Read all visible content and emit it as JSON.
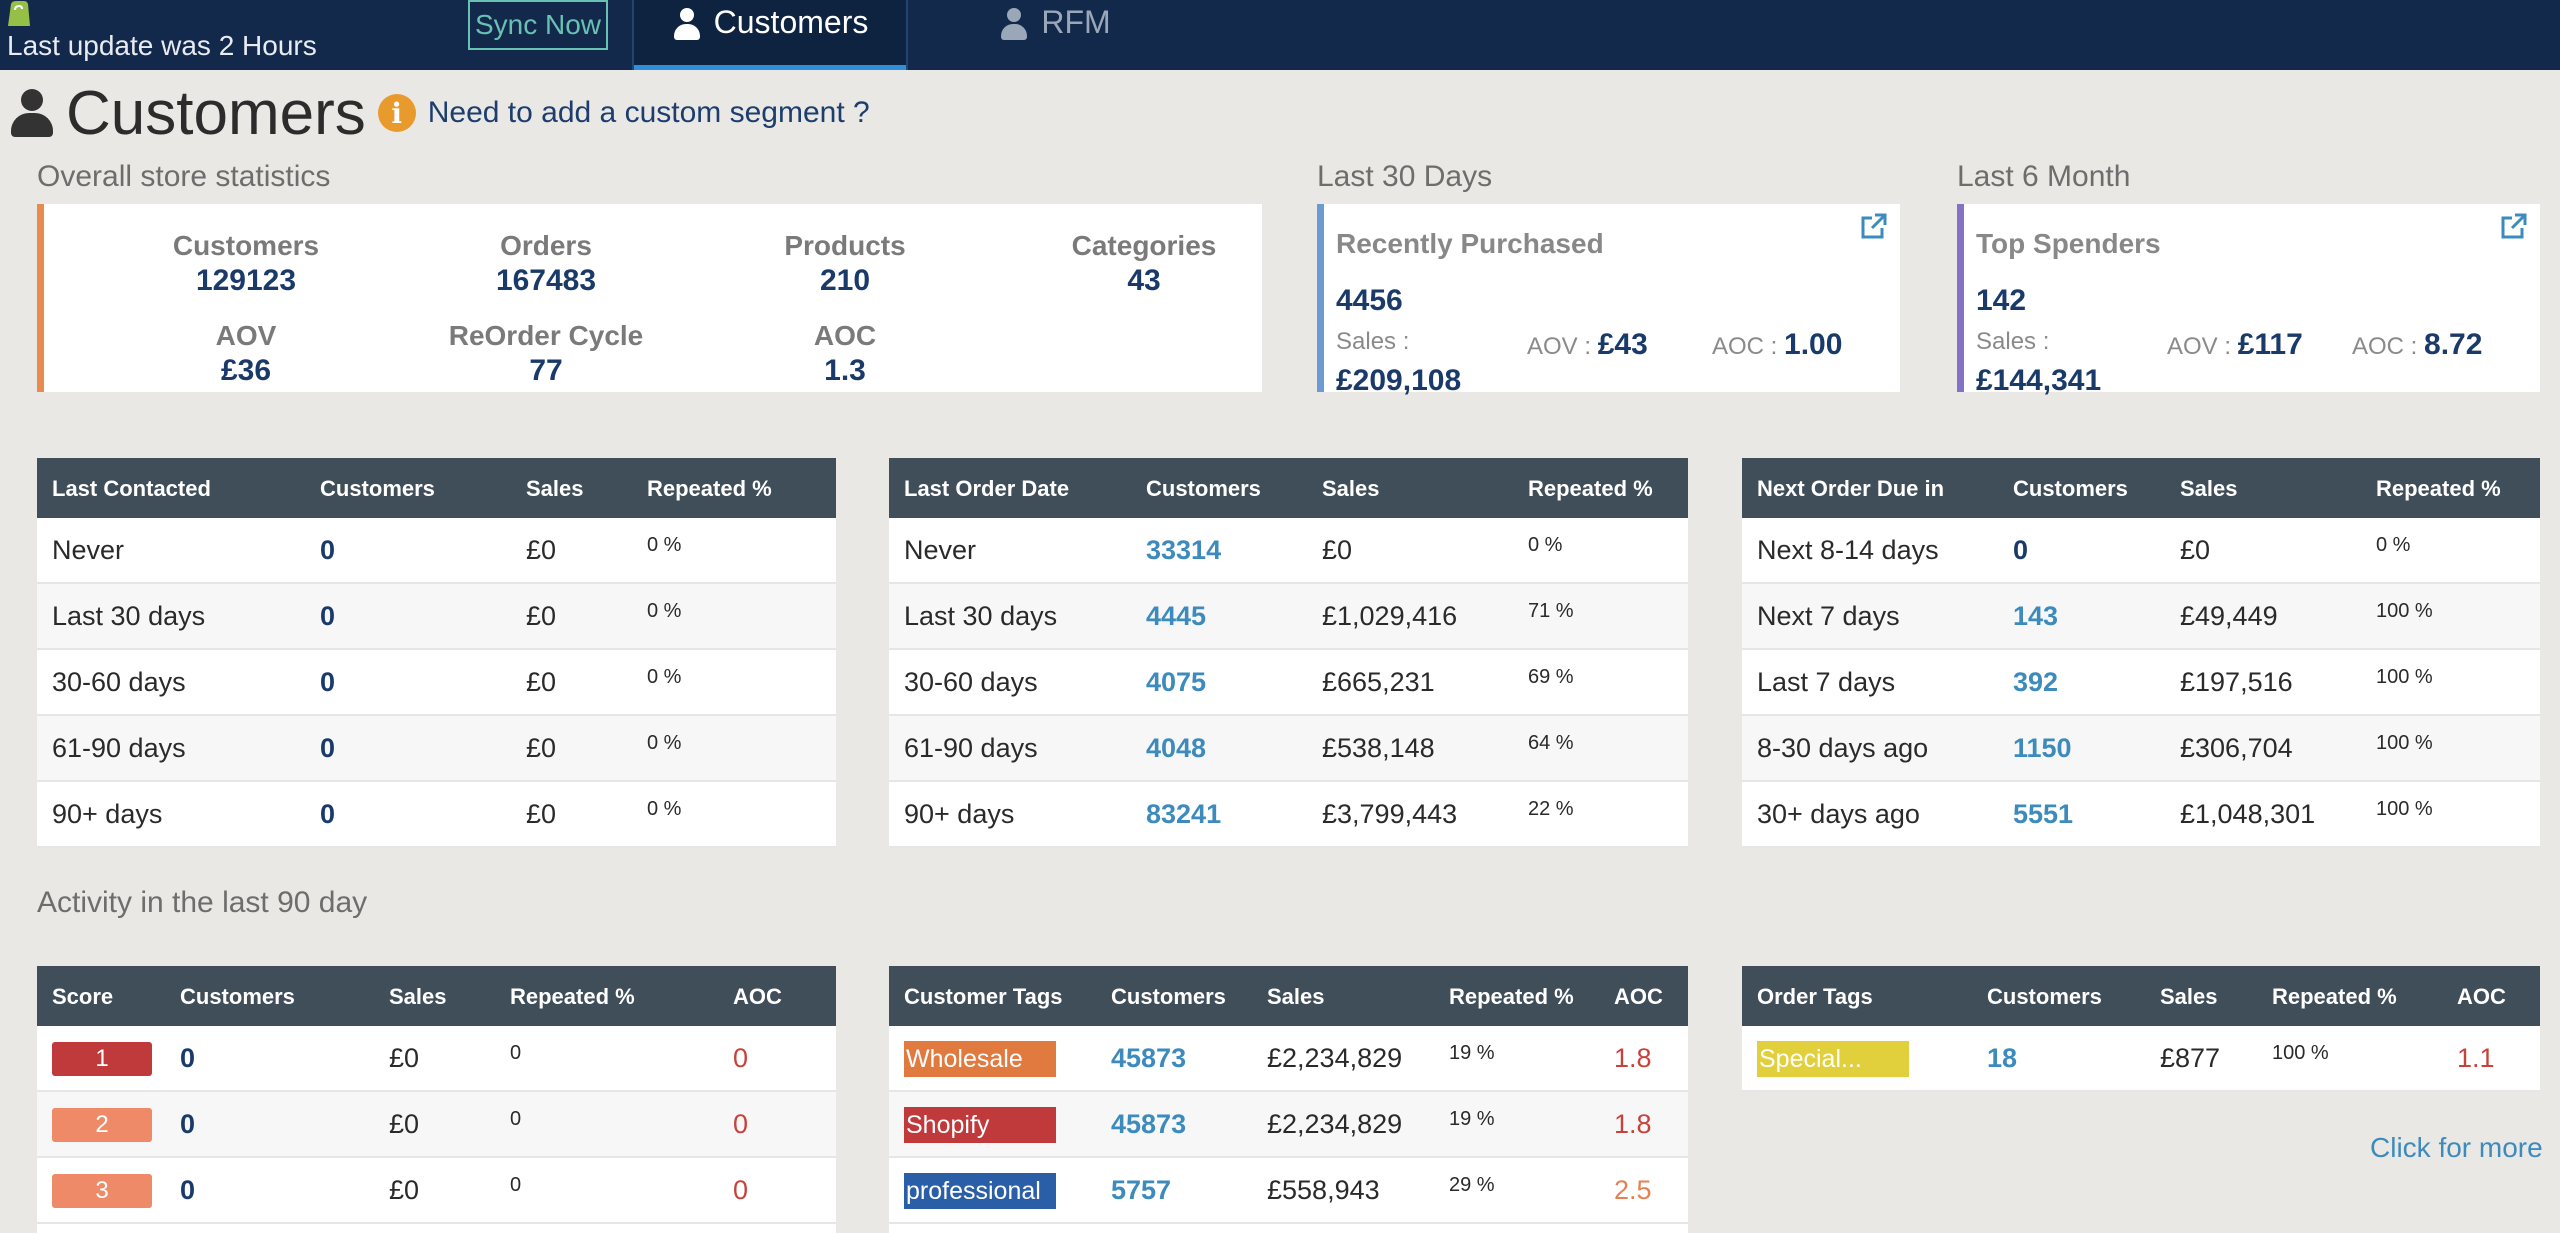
{
  "header": {
    "last_update": "Last update was 2 Hours",
    "sync_label": "Sync Now",
    "tabs": [
      {
        "label": "Customers",
        "active": true
      },
      {
        "label": "RFM",
        "active": false
      }
    ]
  },
  "page": {
    "title": "Customers",
    "custom_segment_link": "Need to add a custom segment ?"
  },
  "overall": {
    "section_title": "Overall store statistics",
    "stats": [
      {
        "label": "Customers",
        "value": "129123"
      },
      {
        "label": "Orders",
        "value": "167483"
      },
      {
        "label": "Products",
        "value": "210"
      },
      {
        "label": "Categories",
        "value": "43"
      },
      {
        "label": "AOV",
        "value": "£36"
      },
      {
        "label": "ReOrder Cycle",
        "value": "77"
      },
      {
        "label": "AOC",
        "value": "1.3"
      }
    ]
  },
  "last30": {
    "section_title": "Last 30 Days",
    "card_title": "Recently Purchased",
    "count": "4456",
    "sales_label": "Sales :",
    "sales_value": "£209,108",
    "aov_label": "AOV :",
    "aov_value": "£43",
    "aoc_label": "AOC :",
    "aoc_value": "1.00"
  },
  "last6": {
    "section_title": "Last 6 Month",
    "card_title": "Top Spenders",
    "count": "142",
    "sales_label": "Sales :",
    "sales_value": "£144,341",
    "aov_label": "AOV :",
    "aov_value": "£117",
    "aoc_label": "AOC :",
    "aoc_value": "8.72"
  },
  "last_contacted": {
    "headers": [
      "Last Contacted",
      "Customers",
      "Sales",
      "Repeated %"
    ],
    "rows": [
      [
        "Never",
        "0",
        "£0",
        "0 %"
      ],
      [
        "Last 30 days",
        "0",
        "£0",
        "0 %"
      ],
      [
        "30-60 days",
        "0",
        "£0",
        "0 %"
      ],
      [
        "61-90 days",
        "0",
        "£0",
        "0 %"
      ],
      [
        "90+ days",
        "0",
        "£0",
        "0 %"
      ]
    ]
  },
  "last_order": {
    "headers": [
      "Last Order Date",
      "Customers",
      "Sales",
      "Repeated %"
    ],
    "rows": [
      [
        "Never",
        "33314",
        "£0",
        "0 %"
      ],
      [
        "Last 30 days",
        "4445",
        "£1,029,416",
        "71 %"
      ],
      [
        "30-60 days",
        "4075",
        "£665,231",
        "69 %"
      ],
      [
        "61-90 days",
        "4048",
        "£538,148",
        "64 %"
      ],
      [
        "90+ days",
        "83241",
        "£3,799,443",
        "22 %"
      ]
    ]
  },
  "next_order": {
    "headers": [
      "Next Order Due in",
      "Customers",
      "Sales",
      "Repeated %"
    ],
    "rows": [
      [
        "Next 8-14 days",
        "0",
        "£0",
        "0 %"
      ],
      [
        "Next 7 days",
        "143",
        "£49,449",
        "100 %"
      ],
      [
        "Last 7 days",
        "392",
        "£197,516",
        "100 %"
      ],
      [
        "8-30 days ago",
        "1150",
        "£306,704",
        "100 %"
      ],
      [
        "30+ days ago",
        "5551",
        "£1,048,301",
        "100 %"
      ]
    ]
  },
  "activity": {
    "section_title": "Activity in the last 90 day"
  },
  "score": {
    "headers": [
      "Score",
      "Customers",
      "Sales",
      "Repeated %",
      "AOC"
    ],
    "rows": [
      {
        "score": "1",
        "color": "#c0393b",
        "customers": "0",
        "sales": "£0",
        "repeated": "0",
        "aoc": "0"
      },
      {
        "score": "2",
        "color": "#ee8a67",
        "customers": "0",
        "sales": "£0",
        "repeated": "0",
        "aoc": "0"
      },
      {
        "score": "3",
        "color": "#ee8a67",
        "customers": "0",
        "sales": "£0",
        "repeated": "0",
        "aoc": "0"
      }
    ]
  },
  "customer_tags": {
    "headers": [
      "Customer Tags",
      "Customers",
      "Sales",
      "Repeated %",
      "AOC"
    ],
    "rows": [
      {
        "tag": "Wholesale",
        "color": "#e07a3e",
        "customers": "45873",
        "sales": "£2,234,829",
        "repeated": "19 %",
        "aoc": "1.8"
      },
      {
        "tag": "Shopify",
        "color": "#c0393b",
        "customers": "45873",
        "sales": "£2,234,829",
        "repeated": "19 %",
        "aoc": "1.8"
      },
      {
        "tag": "professional",
        "color": "#2a5fa8",
        "customers": "5757",
        "sales": "£558,943",
        "repeated": "29 %",
        "aoc": "2.5"
      }
    ]
  },
  "order_tags": {
    "headers": [
      "Order Tags",
      "Customers",
      "Sales",
      "Repeated %",
      "AOC"
    ],
    "rows": [
      {
        "tag": "Special...",
        "color": "#e2cf3c",
        "customers": "18",
        "sales": "£877",
        "repeated": "100 %",
        "aoc": "1.1"
      }
    ],
    "more_link": "Click for more"
  }
}
